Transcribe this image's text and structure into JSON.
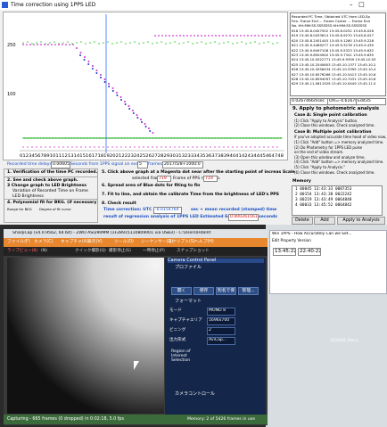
{
  "app": {
    "title": "Time correction using 1PPS LED",
    "chart": {
      "y_labels": [
        "250",
        "100"
      ],
      "x_labels": "0123456789101112131415161718192021222324252627282930313233343536373839404142434445464748"
    },
    "list": {
      "header": [
        "Recorded PC Time, Obtained UTC from LED-Sp",
        "Frm. Frame End ... Frame Center ... Frame End",
        "No. HH:MM:SS.SSSSSSS HH:MM:SS.SSSSSSS"
      ],
      "rows": [
        "618 13:45.8.0457502 13:45.8.0252 13:45.8.026",
        "619 13:45.8.0433614 13:45.8.9270 13:45.8.027",
        "620 13:45.8.2451445 13:45.9.1260 13:45.9.228",
        "621 13:45.9.4469277 13:45.9.3278 13:45.9.430",
        "622 13:45.9.6497108 13:45.9.5323 13:45.9.632",
        "623 13:45.9.8504940 13:45.9.7341 13:45.9.835",
        "624 13:45.10.0522771 13:45.9.9359 13:45.10.03",
        "625 13:45.10.2540603 13:45.10.1377 13:45.10.2",
        "626 13:45.10.4558434 13:45.10.3395 13:45.10.4",
        "627 13:45.10.6576266 13:45.10.5413 13:45.10.6",
        "628 13:45.10.8594097 13:45.10.7431 13:45.10.8",
        "629 13:45.11.0611929 13:45.10.9449 13:45.11.0"
      ]
    },
    "offset": "0.0267466msec",
    "offset2": "Ofs=-4.616783",
    "offset_btn": "Edit35",
    "apply": {
      "heading": "9. Apply to photometric analysis",
      "lines": [
        "Case A:  Single point calibration",
        "(1) Click \"Apply to Analysis\" button.",
        "(2) Close this windows. Check analyzed time.",
        "Case B:  Multiple point calibration",
        "If you've adopted accurate time head of video now,",
        "(1) Click \"Add\" button => memory analyzed time.",
        "(2) Do Photometry for 1PPS LED pulse",
        "on the end of video stream.",
        "(3) Open this window and analyze time.",
        "(4) Click \"Add\" button => memory analyzed time.",
        "(5) Click \"Apply to Analysis.\"",
        "(6) Close this windows. Check analyzed time."
      ]
    },
    "memory": {
      "label": "Memory",
      "rows": [
        "1  00045 13:43:33 0087353",
        "2  00154 13:43:38 0022242",
        "3  00219 13:43:49 0064848",
        "4  00033 13:45:52 0064842"
      ]
    },
    "buttons": [
      "Delete",
      "Add",
      "Apply to Analysis"
    ],
    "delays": {
      "label": "Recorded time delays",
      "value": "0.00605",
      "text": "Seconds from 1PPS signal on every",
      "frames": "5",
      "frames_label": "frames",
      "date": "2017/5/8+1000:0"
    },
    "steps_left": [
      "1. Verification of the time PC recorded.",
      "2. See and check above graph.",
      "3 Change graph to LED Brightness",
      "Variation of Recorded Time on Frame",
      "LED Brightness",
      "4. Polynomial fit for BKG. (if necessary)",
      "Range for BKG",
      "Degree of fit curve"
    ],
    "steps_right": {
      "s5": "5. Click above graph at a Magenta dot near after the starting point of increas Scale",
      "sel_label": "selected frame No.",
      "sel": "719",
      "pps_label": "Frame of PPS rising No.",
      "pps": "719",
      "s6": "6. Spread area of Blue dots for fiting to fin",
      "s7": "7. Fit to line, and obtain the calibrate Time from the brightness of LED's PPS",
      "s8": "8. Check result",
      "tc_label": "Time correction:  UTC =",
      "tc": "-0.0154764",
      "tc_tail": "sec + mean recorded (stamped) time",
      "err_label": "result of regression analysis of 1PPS LED    Estimated Error is",
      "err": "0.000261561",
      "err_unit": "seconds"
    }
  },
  "sharpcap": {
    "title": "SharpCap (v4.0.9562, 64 bit) - ZWO ASI290MM (1F28915110809001 via USB3) - C:\\Users\\Hdalnt",
    "menu": [
      "ファイル(F)",
      "カメラ(C)",
      "キャプチャ(A)",
      "表示(V)",
      "ツール(O)",
      "シーケンサー(Q)",
      "スクリプト(S)",
      "ヘルプ(H)"
    ],
    "toolbar": [
      "ライブビュー(B)",
      "(N)",
      "クイック撮影(Q)",
      "撮影停止(S)",
      "一時停止(P)",
      "スナップショット"
    ],
    "panel": {
      "title": "Camera Control Panel",
      "profile": "プロファイル",
      "buttons": [
        "開く",
        "保存",
        "別名で保",
        "管理..."
      ],
      "format": "フォーマット",
      "rows": [
        [
          "モード",
          "MONO 8"
        ],
        [
          "キャプチャエリア",
          "1696x700"
        ],
        [
          "ビニング",
          "2"
        ],
        [
          "出力形式",
          "AviCap..."
        ]
      ],
      "roi": [
        "Region of",
        "Interest",
        "Selection"
      ],
      "control": "カメラコントロール"
    },
    "status": "Capturing - 665 frames (0 dropped) in 0:02:18, 5.0 fps",
    "memory": "Memory: 2 of 5426 frames in use"
  },
  "other": {
    "title": "Win 1PPS - How Accurately Can we Set...",
    "menu": "Edit   Property   Version",
    "time1": "13:45:22",
    "time2": "22:40:22",
    "file": "202402_Docs..."
  }
}
